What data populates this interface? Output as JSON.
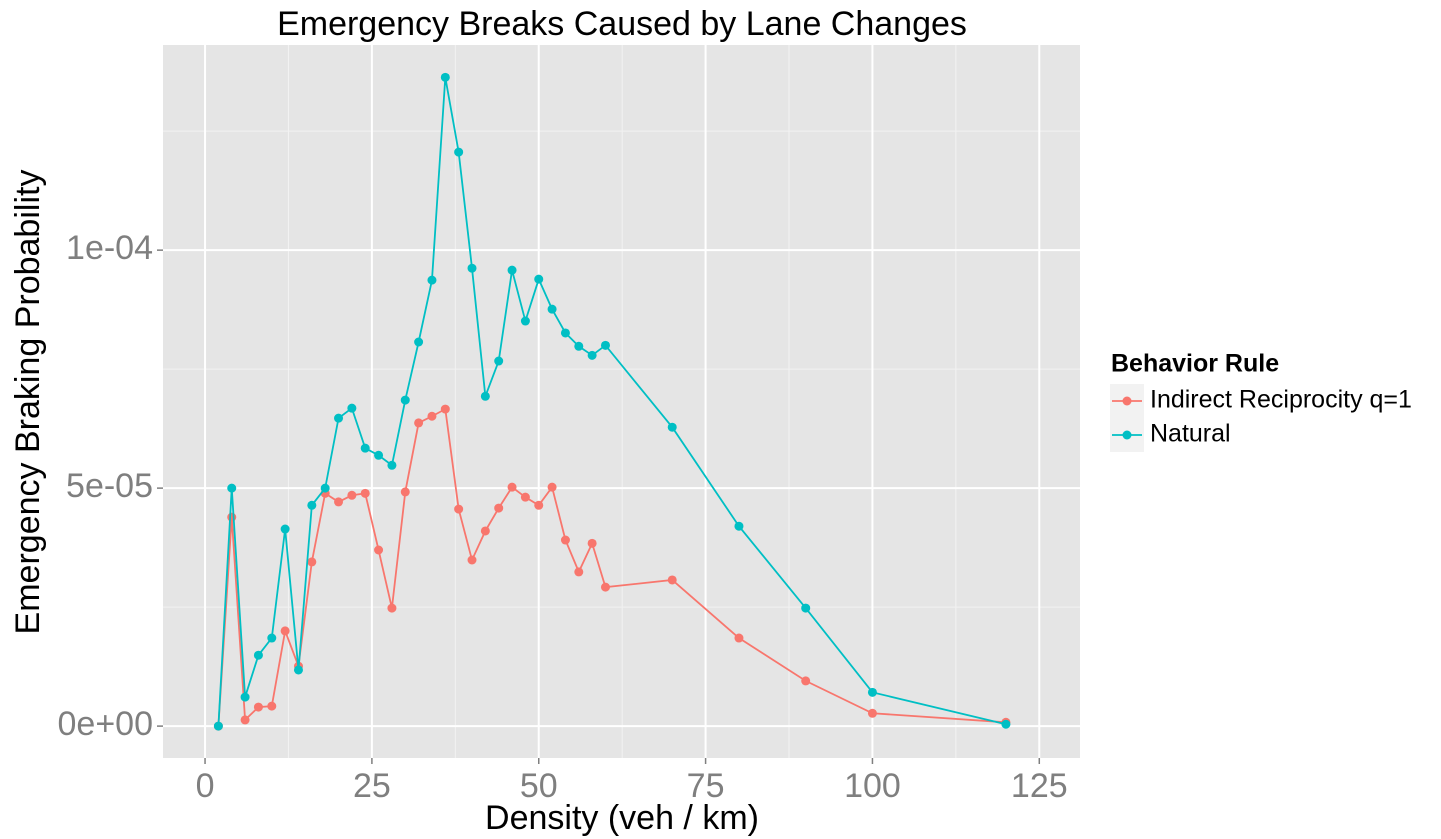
{
  "chart_data": {
    "type": "line",
    "title": "Emergency Breaks Caused by Lane Changes",
    "x_label": "Density (veh / km)",
    "y_label": "Emergency Braking Probability",
    "legend_title": "Behavior Rule",
    "legend_position": "right",
    "grid": true,
    "x": [
      2,
      4,
      6,
      8,
      10,
      12,
      14,
      16,
      18,
      20,
      22,
      24,
      26,
      28,
      30,
      32,
      34,
      36,
      38,
      40,
      42,
      44,
      46,
      48,
      50,
      52,
      54,
      56,
      58,
      60,
      70,
      80,
      90,
      100,
      120
    ],
    "series": [
      {
        "name": "Indirect Reciprocity q=1",
        "color": "#F8766D",
        "values": [
          0,
          4.39e-05,
          1.3e-06,
          4e-06,
          4.2e-06,
          2e-05,
          1.26e-05,
          3.45e-05,
          4.89e-05,
          4.71e-05,
          4.85e-05,
          4.89e-05,
          3.7e-05,
          2.48e-05,
          4.92e-05,
          6.37e-05,
          6.51e-05,
          6.66e-05,
          4.56e-05,
          3.49e-05,
          4.1e-05,
          4.58e-05,
          5.02e-05,
          4.81e-05,
          4.64e-05,
          5.02e-05,
          3.91e-05,
          3.24e-05,
          3.84e-05,
          2.92e-05,
          3.07e-05,
          1.85e-05,
          9.5e-06,
          2.7e-06,
          8e-07
        ]
      },
      {
        "name": "Natural",
        "color": "#00BFC4",
        "values": [
          0,
          5e-05,
          6.1e-06,
          1.49e-05,
          1.85e-05,
          4.14e-05,
          1.18e-05,
          4.64e-05,
          5e-05,
          6.47e-05,
          6.68e-05,
          5.84e-05,
          5.69e-05,
          5.48e-05,
          6.85e-05,
          8.07e-05,
          9.37e-05,
          0.0001363,
          0.0001206,
          9.62e-05,
          6.93e-05,
          7.67e-05,
          9.58e-05,
          8.51e-05,
          9.39e-05,
          8.76e-05,
          8.26e-05,
          7.98e-05,
          7.79e-05,
          8e-05,
          6.28e-05,
          4.2e-05,
          2.48e-05,
          7.1e-06,
          4e-07
        ]
      }
    ],
    "xlim": [
      -6.3,
      131.1
    ],
    "ylim": [
      -6.7e-06,
      0.0001431
    ],
    "xticks": [
      0,
      25,
      50,
      75,
      100,
      125
    ],
    "yticks": [
      {
        "value": 0,
        "label": "0e+00"
      },
      {
        "value": 5e-05,
        "label": "5e-05"
      },
      {
        "value": 0.0001,
        "label": "1e-04"
      }
    ],
    "x_minor_ticks": [
      12.5,
      37.5,
      62.5,
      87.5,
      112.5
    ],
    "y_minor_ticks": [
      2.5e-05,
      7.5e-05,
      0.000125
    ]
  }
}
